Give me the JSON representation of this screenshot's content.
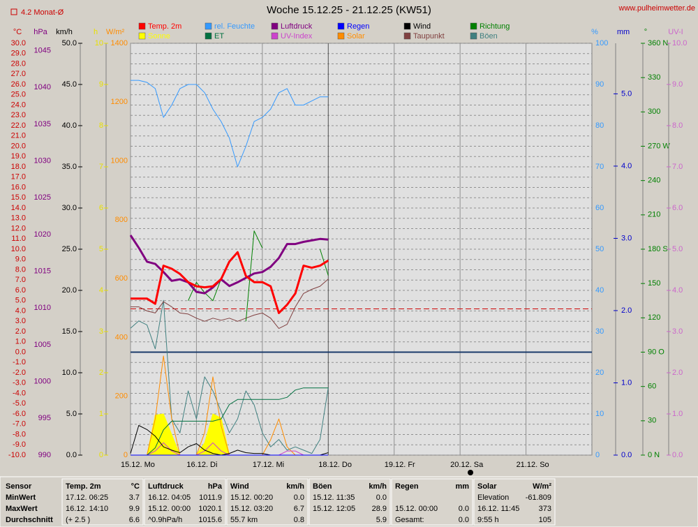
{
  "chart_data": {
    "type": "line",
    "title": "Woche 15.12.25 - 21.12.25 (KW51)",
    "site": "www.pulheimwetter.de",
    "monthly_avg": {
      "value": 4.2,
      "label": "4.2 Monat-Ø"
    },
    "xlim": [
      0,
      7
    ],
    "xticks": [
      {
        "value": 0,
        "label": "15.12. Mo"
      },
      {
        "value": 1,
        "label": "16.12. Di"
      },
      {
        "value": 2,
        "label": "17.12. Mi"
      },
      {
        "value": 3,
        "label": "18.12. Do"
      },
      {
        "value": 4,
        "label": "19.12. Fr"
      },
      {
        "value": 5,
        "label": "20.12. Sa"
      },
      {
        "value": 6,
        "label": "21.12. So"
      }
    ],
    "axes": [
      {
        "unit": "°C",
        "color": "#cc0000",
        "grid": true,
        "ylim": [
          -10,
          30
        ],
        "yticks": [
          {
            "value": 30,
            "label": "30.0"
          },
          {
            "value": 29,
            "label": "29.0"
          },
          {
            "value": 28,
            "label": "28.0"
          },
          {
            "value": 27,
            "label": "27.0"
          },
          {
            "value": 26,
            "label": "26.0"
          },
          {
            "value": 25,
            "label": "25.0"
          },
          {
            "value": 24,
            "label": "24.0"
          },
          {
            "value": 23,
            "label": "23.0"
          },
          {
            "value": 22,
            "label": "22.0"
          },
          {
            "value": 21,
            "label": "21.0"
          },
          {
            "value": 20,
            "label": "20.0"
          },
          {
            "value": 19,
            "label": "19.0"
          },
          {
            "value": 18,
            "label": "18.0"
          },
          {
            "value": 17,
            "label": "17.0"
          },
          {
            "value": 16,
            "label": "16.0"
          },
          {
            "value": 15,
            "label": "15.0"
          },
          {
            "value": 14,
            "label": "14.0"
          },
          {
            "value": 13,
            "label": "13.0"
          },
          {
            "value": 12,
            "label": "12.0"
          },
          {
            "value": 11,
            "label": "11.0"
          },
          {
            "value": 10,
            "label": "10.0"
          },
          {
            "value": 9,
            "label": "9.0"
          },
          {
            "value": 8,
            "label": "8.0"
          },
          {
            "value": 7,
            "label": "7.0"
          },
          {
            "value": 6,
            "label": "6.0"
          },
          {
            "value": 5,
            "label": "5.0"
          },
          {
            "value": 4,
            "label": "4.0"
          },
          {
            "value": 3,
            "label": "3.0"
          },
          {
            "value": 2,
            "label": "2.0"
          },
          {
            "value": 1,
            "label": "1.0"
          },
          {
            "value": 0,
            "label": "0.0"
          },
          {
            "value": -1,
            "label": "-1.0"
          },
          {
            "value": -2,
            "label": "-2.0"
          },
          {
            "value": -3,
            "label": "-3.0"
          },
          {
            "value": -4,
            "label": "-4.0"
          },
          {
            "value": -5,
            "label": "-5.0"
          },
          {
            "value": -6,
            "label": "-6.0"
          },
          {
            "value": -7,
            "label": "-7.0"
          },
          {
            "value": -8,
            "label": "-8.0"
          },
          {
            "value": -9,
            "label": "-9.0"
          },
          {
            "value": -10,
            "label": "-10.0"
          }
        ]
      },
      {
        "unit": "hPa",
        "color": "#800080",
        "ylim": [
          990,
          1046
        ],
        "yticks": [
          1045,
          1040,
          1035,
          1030,
          1025,
          1020,
          1015,
          1010,
          1005,
          1000,
          995,
          990
        ]
      },
      {
        "unit": "km/h",
        "color": "#000000",
        "ylim": [
          0,
          50
        ],
        "yticks": [
          {
            "value": 50,
            "label": "50.0"
          },
          {
            "value": 45,
            "label": "45.0"
          },
          {
            "value": 40,
            "label": "40.0"
          },
          {
            "value": 35,
            "label": "35.0"
          },
          {
            "value": 30,
            "label": "30.0"
          },
          {
            "value": 25,
            "label": "25.0"
          },
          {
            "value": 20,
            "label": "20.0"
          },
          {
            "value": 15,
            "label": "15.0"
          },
          {
            "value": 10,
            "label": "10.0"
          },
          {
            "value": 5,
            "label": "5.0"
          },
          {
            "value": 0,
            "label": "0.0"
          }
        ]
      },
      {
        "unit": "h",
        "color": "#e8e000",
        "ylim": [
          0,
          10
        ],
        "yticks": [
          10,
          9,
          8,
          7,
          6,
          5,
          4,
          3,
          2,
          1,
          0
        ]
      },
      {
        "unit": "W/m²",
        "color": "#ff8c00",
        "ylim": [
          0,
          1400
        ],
        "yticks": [
          1400,
          1200,
          1000,
          800,
          600,
          400,
          200,
          0
        ]
      },
      {
        "unit": "%",
        "color": "#3399ff",
        "ylim": [
          0,
          100
        ],
        "yticks": [
          100,
          90,
          80,
          70,
          60,
          50,
          40,
          30,
          20,
          10,
          0
        ]
      },
      {
        "unit": "mm",
        "color": "#0000cc",
        "ylim": [
          0,
          5.7
        ],
        "yticks": [
          {
            "value": 5,
            "label": "5.0"
          },
          {
            "value": 4,
            "label": "4.0"
          },
          {
            "value": 3,
            "label": "3.0"
          },
          {
            "value": 2,
            "label": "2.0"
          },
          {
            "value": 1,
            "label": "1.0"
          },
          {
            "value": 0,
            "label": "0.0"
          }
        ]
      },
      {
        "unit": "°",
        "color": "#008000",
        "ylim": [
          0,
          360
        ],
        "yticks": [
          {
            "value": 360,
            "label": "360 N"
          },
          330,
          300,
          {
            "value": 270,
            "label": "270 W"
          },
          240,
          210,
          {
            "value": 180,
            "label": "180 S"
          },
          150,
          120,
          {
            "value": 90,
            "label": "90 O"
          },
          60,
          30,
          {
            "value": 0,
            "label": "0 N"
          }
        ]
      },
      {
        "unit": "UV-I",
        "color": "#cc66cc",
        "ylim": [
          0,
          10
        ],
        "yticks": [
          {
            "value": 10,
            "label": "10.0"
          },
          {
            "value": 9,
            "label": "9.0"
          },
          {
            "value": 8,
            "label": "8.0"
          },
          {
            "value": 7,
            "label": "7.0"
          },
          {
            "value": 6,
            "label": "6.0"
          },
          {
            "value": 5,
            "label": "5.0"
          },
          {
            "value": 4,
            "label": "4.0"
          },
          {
            "value": 3,
            "label": "3.0"
          },
          {
            "value": 2,
            "label": "2.0"
          },
          {
            "value": 1,
            "label": "1.0"
          },
          {
            "value": 0,
            "label": "0.0"
          }
        ]
      }
    ],
    "x": [
      0,
      0.125,
      0.25,
      0.375,
      0.5,
      0.625,
      0.75,
      0.875,
      1,
      1.125,
      1.25,
      1.375,
      1.5,
      1.625,
      1.75,
      1.875,
      2,
      2.125,
      2.25,
      2.375,
      2.5,
      2.625,
      2.75,
      2.875,
      3
    ],
    "series": [
      {
        "name": "Temp. 2m",
        "color": "#ff0000",
        "axis": "°C",
        "line_width": 3,
        "values": [
          5.2,
          5.2,
          5.2,
          4.7,
          8.4,
          8.1,
          7.6,
          6.8,
          6.4,
          6.3,
          6.4,
          7.1,
          8.8,
          9.7,
          7.4,
          6.8,
          6.8,
          6.4,
          3.8,
          4.6,
          5.7,
          8.4,
          8.2,
          8.4,
          8.9
        ]
      },
      {
        "name": "rel. Feuchte",
        "color": "#3399ff",
        "axis": "%",
        "line_width": 1,
        "values": [
          91,
          91,
          90.5,
          89,
          82,
          85,
          89,
          90,
          90,
          88,
          84,
          81,
          77,
          70,
          75,
          81,
          82,
          84,
          88,
          89,
          85,
          85,
          86,
          87,
          87
        ]
      },
      {
        "name": "Luftdruck",
        "color": "#800080",
        "axis": "hPa",
        "line_width": 3,
        "values": [
          1019.9,
          1018.2,
          1016.3,
          1016.0,
          1014.9,
          1013.7,
          1013.9,
          1013.5,
          1012.2,
          1012.0,
          1012.8,
          1013.9,
          1013.0,
          1013.5,
          1014.1,
          1014.7,
          1014.9,
          1015.6,
          1016.8,
          1018.7,
          1018.7,
          1019.0,
          1019.2,
          1019.4,
          1019.3
        ]
      },
      {
        "name": "Regen",
        "color": "#0000ff",
        "axis": "mm",
        "line_width": 1,
        "values": [
          0,
          0,
          0,
          0,
          0,
          0,
          0,
          0,
          0,
          0,
          0,
          0,
          0,
          0,
          0,
          0,
          0,
          0,
          0,
          0,
          0,
          0,
          0,
          0,
          0
        ]
      },
      {
        "name": "Wind",
        "color": "#000000",
        "axis": "km/h",
        "line_width": 1,
        "values": [
          0.2,
          3.6,
          3.1,
          2.3,
          1.0,
          0.6,
          0.3,
          1.0,
          1.4,
          0.6,
          0.2,
          0,
          0.2,
          0.6,
          0.3,
          0.2,
          0.2,
          0,
          0,
          0,
          0,
          0,
          0,
          0,
          0.3
        ]
      },
      {
        "name": "Richtung",
        "color": "#008000",
        "axis": "°",
        "line_width": 1,
        "values": [
          null,
          null,
          null,
          null,
          null,
          null,
          null,
          135,
          151,
          142,
          135,
          154,
          null,
          null,
          117,
          196,
          181,
          null,
          null,
          null,
          null,
          null,
          null,
          180,
          157
        ]
      },
      {
        "name": "Sonne",
        "color": "#ffff00",
        "axis": "h",
        "line_width": 1,
        "area": true,
        "values": [
          0,
          0,
          0,
          0.97,
          1.0,
          0.5,
          0,
          0,
          0,
          0.3,
          1.0,
          0.9,
          0,
          0,
          0,
          0,
          0,
          0,
          0,
          0,
          0,
          0,
          0,
          0,
          0
        ]
      },
      {
        "name": "ET",
        "color": "#007040",
        "axis": "mm",
        "line_width": 1,
        "values": [
          0,
          0,
          0,
          0.1,
          0.35,
          0.47,
          0.47,
          0.47,
          0.47,
          0.47,
          0.47,
          0.5,
          0.7,
          0.77,
          0.77,
          0.77,
          0.77,
          0.77,
          0.77,
          0.8,
          0.9,
          0.93,
          0.93,
          0.93,
          0.93
        ]
      },
      {
        "name": "UV-Index",
        "color": "#cc44cc",
        "axis": "UV-I",
        "line_width": 1,
        "values": [
          0,
          0,
          0,
          0.1,
          0.3,
          0.1,
          0,
          0,
          0,
          0.1,
          0.3,
          0.1,
          0,
          0,
          0,
          0,
          0,
          0,
          0,
          0.1,
          0.1,
          0,
          0,
          0,
          0
        ]
      },
      {
        "name": "Solar",
        "color": "#ff8c00",
        "axis": "W/m²",
        "line_width": 1,
        "values": [
          0,
          0,
          0,
          123,
          337,
          123,
          0,
          0,
          0,
          76,
          266,
          100,
          0,
          0,
          0,
          0,
          0,
          52,
          123,
          28,
          0,
          0,
          0,
          0,
          0
        ]
      },
      {
        "name": "Taupunkt",
        "color": "#804040",
        "axis": "°C",
        "line_width": 1,
        "values": [
          4.4,
          4.4,
          4.0,
          3.8,
          4.9,
          4.4,
          3.8,
          3.7,
          3.3,
          3.0,
          3.3,
          3.1,
          3.3,
          3.0,
          3.3,
          3.6,
          3.8,
          3.3,
          2.3,
          2.7,
          4.4,
          5.7,
          6.1,
          6.4,
          7.1
        ]
      },
      {
        "name": "Böen",
        "color": "#408080",
        "axis": "km/h",
        "line_width": 1,
        "values": [
          15.4,
          16.3,
          15.8,
          12.9,
          18.8,
          4.4,
          2.7,
          7.8,
          4.4,
          9.5,
          7.8,
          5.3,
          2.7,
          4.4,
          7.8,
          6.1,
          2.7,
          1.0,
          1.9,
          0.6,
          1.0,
          0.6,
          0.2,
          1.9,
          8.2
        ]
      }
    ]
  },
  "table": {
    "row_labels": [
      "Sensor",
      "MinWert",
      "MaxWert",
      "Durchschnitt"
    ],
    "groups": [
      {
        "name": "Temp. 2m",
        "unit": "°C",
        "rows": [
          {
            "text": "17.12.  06:25",
            "value": "3.7"
          },
          {
            "text": "16.12.  14:10",
            "value": "9.9"
          },
          {
            "text": "(+ 2.5 )",
            "value": "6.6"
          }
        ]
      },
      {
        "name": "Luftdruck",
        "unit": "hPa",
        "rows": [
          {
            "text": "16.12.  04:05",
            "value": "1011.9"
          },
          {
            "text": "15.12.  00:00",
            "value": "1020.1"
          },
          {
            "text": "^0.9hPa/h",
            "value": "1015.6"
          }
        ]
      },
      {
        "name": "Wind",
        "unit": "km/h",
        "rows": [
          {
            "text": "15.12.  00:20",
            "value": "0.0"
          },
          {
            "text": "15.12.  03:20",
            "value": "6.7"
          },
          {
            "text": "55.7 km",
            "value": "0.8"
          }
        ]
      },
      {
        "name": "Böen",
        "unit": "km/h",
        "rows": [
          {
            "text": "15.12.  11:35",
            "value": "0.0"
          },
          {
            "text": "15.12.  12:05",
            "value": "28.9"
          },
          {
            "value": "5.9"
          }
        ]
      },
      {
        "name": "Regen",
        "unit": "mm",
        "rows": [
          {},
          {
            "text": "15.12.  00:00",
            "value": "0.0"
          },
          {
            "text": "Gesamt:",
            "value": "0.0"
          }
        ]
      },
      {
        "name": "Solar",
        "unit": "W/m²",
        "rows": [
          {
            "text": "Elevation",
            "value": "-61.809"
          },
          {
            "text": "16.12.  11:45",
            "value": "373"
          },
          {
            "text": "9:55 h",
            "value": "105"
          }
        ]
      }
    ]
  }
}
